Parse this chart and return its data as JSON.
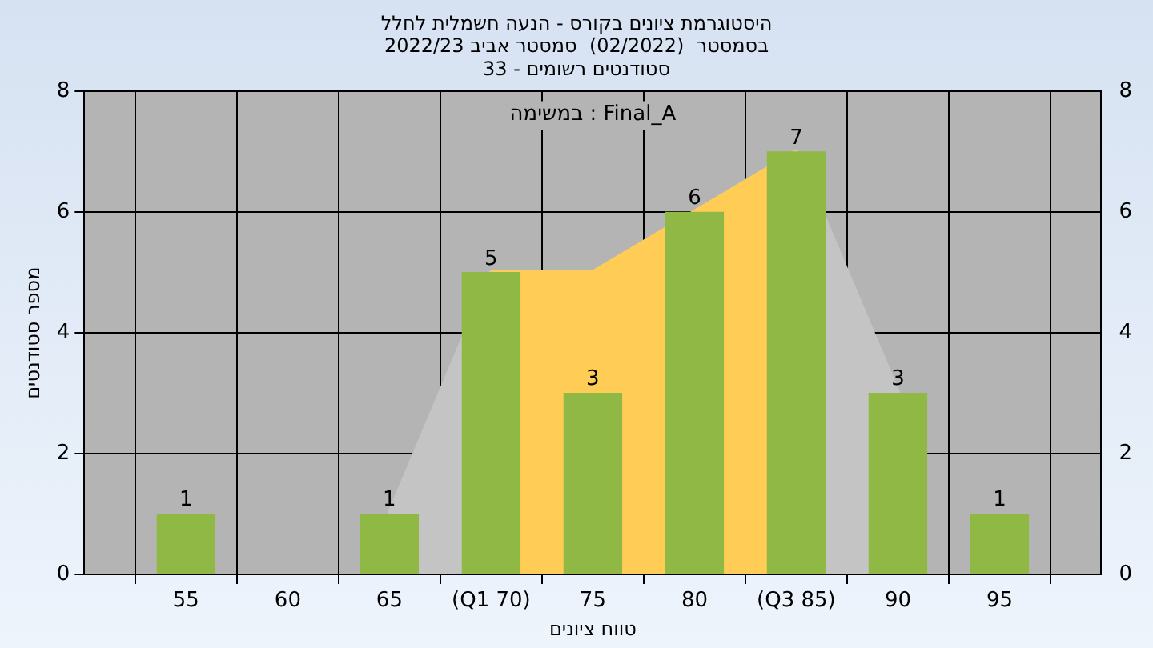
{
  "chart_data": {
    "type": "bar",
    "title": "היסטוגרמת ציונים בקורס - הנעה חשמלית לחלל\nבסמסטר  (02/2022)  סמסטר אביב 2022/23",
    "subtitle": "סטודנטים רשומים - 33",
    "xlabel": "טווח ציונים",
    "ylabel": "מספר סטודנטים",
    "categories": [
      "55",
      "60",
      "65",
      "(Q1 70)",
      "75",
      "80",
      "(Q3 85)",
      "90",
      "95"
    ],
    "series": [
      {
        "type": "area",
        "color": "#c4c4c4",
        "values": [
          null,
          null,
          1,
          5,
          5,
          6,
          7,
          3,
          null
        ]
      },
      {
        "type": "area",
        "color": "#ffcc55",
        "values": [
          null,
          null,
          null,
          5,
          5,
          6,
          7,
          null,
          null
        ]
      },
      {
        "color": "#8fb845",
        "values": [
          1,
          0,
          1,
          5,
          3,
          6,
          7,
          3,
          1
        ],
        "value_labels": [
          "1",
          null,
          "1",
          "5",
          "3",
          "6",
          "7",
          "3",
          "1"
        ]
      }
    ],
    "ylim": [
      0,
      8
    ],
    "yticks": [
      0,
      2,
      4,
      6,
      8
    ],
    "y2lim": [
      0,
      8
    ],
    "y2ticks": [
      0,
      2,
      4,
      6,
      8
    ],
    "annotations": [
      "במשימה : Final_A"
    ],
    "grid": true,
    "legend": false
  }
}
